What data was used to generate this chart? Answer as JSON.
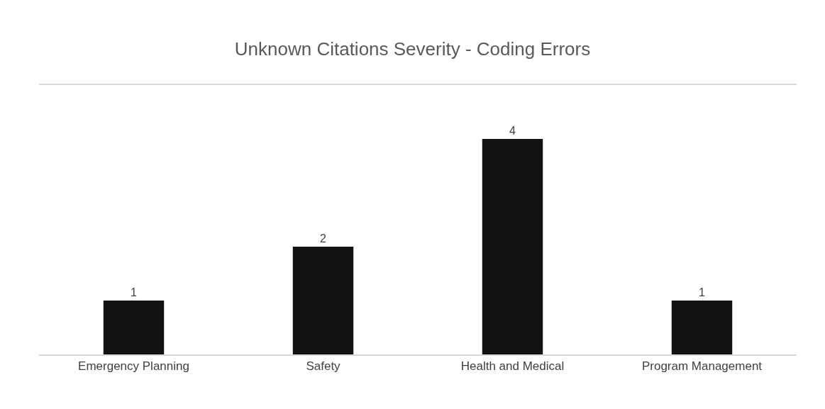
{
  "chart_data": {
    "type": "bar",
    "title": "Unknown Citations Severity - Coding Errors",
    "categories": [
      "Emergency Planning",
      "Safety",
      "Health and Medical",
      "Program Management"
    ],
    "values": [
      1,
      2,
      4,
      1
    ],
    "color": "#111111",
    "ylim": [
      0,
      5
    ],
    "tick_labels": "x",
    "data_labels": true
  }
}
